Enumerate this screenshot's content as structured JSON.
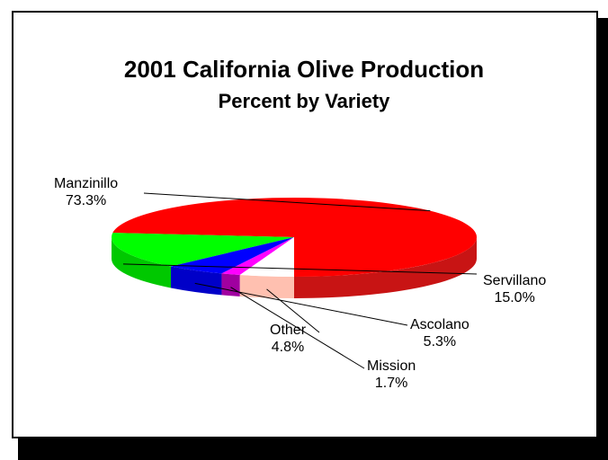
{
  "chart_data": {
    "type": "pie",
    "title": "2001 California Olive Production",
    "subtitle": "Percent by Variety",
    "slices": [
      {
        "label": "Manzinillo",
        "value": 73.3,
        "value_label": "73.3%",
        "color": "#ff0000",
        "side_color": "#c81414"
      },
      {
        "label": "Servillano",
        "value": 15.0,
        "value_label": "15.0%",
        "color": "#00ff00",
        "side_color": "#00c800"
      },
      {
        "label": "Ascolano",
        "value": 5.3,
        "value_label": "5.3%",
        "color": "#0000ff",
        "side_color": "#0000c8"
      },
      {
        "label": "Mission",
        "value": 1.7,
        "value_label": "1.7%",
        "color": "#ff00ff",
        "side_color": "#a000a0"
      },
      {
        "label": "Other",
        "value": 4.8,
        "value_label": "4.8%",
        "color": "#ffffff",
        "side_color": "#ffc0b0"
      }
    ],
    "legend": "none",
    "style": "3d-pie"
  }
}
